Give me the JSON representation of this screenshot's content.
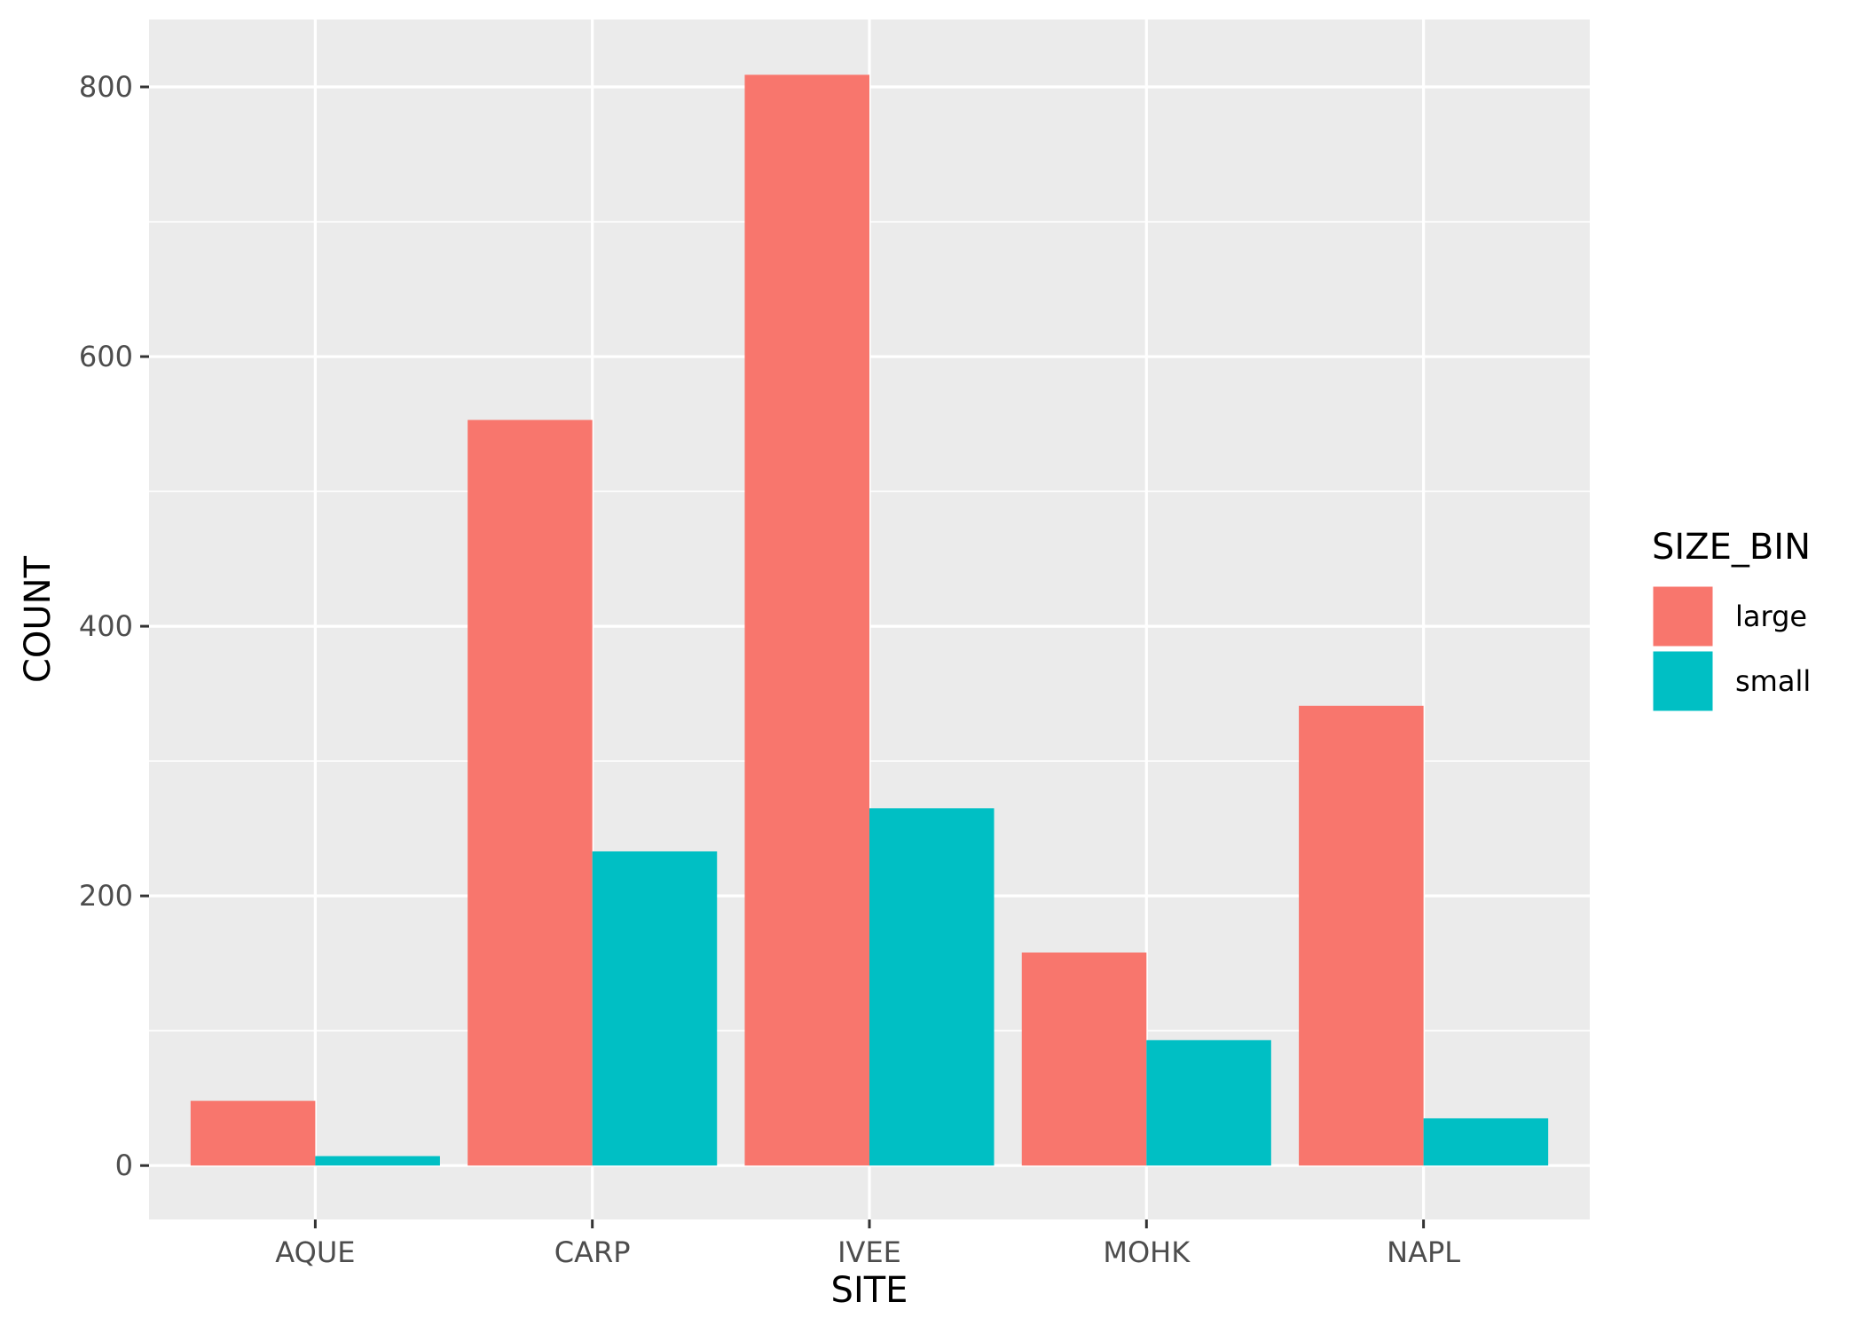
{
  "chart_data": {
    "type": "bar",
    "title": "",
    "xlabel": "SITE",
    "ylabel": "COUNT",
    "categories": [
      "AQUE",
      "CARP",
      "IVEE",
      "MOHK",
      "NAPL"
    ],
    "series": [
      {
        "name": "large",
        "color": "#F8766D",
        "values": [
          48,
          553,
          809,
          158,
          341
        ]
      },
      {
        "name": "small",
        "color": "#00BFC4",
        "values": [
          7,
          233,
          265,
          93,
          35
        ]
      }
    ],
    "ylim": [
      -40,
      850
    ],
    "yticks": [
      0,
      200,
      400,
      600,
      800
    ],
    "grid": true,
    "legend": {
      "title": "SIZE_BIN",
      "position": "right",
      "items": [
        "large",
        "small"
      ]
    },
    "colors": {
      "panel_background": "#EBEBEB",
      "grid": "#FFFFFF",
      "axis_text": "#4D4D4D",
      "axis_title": "#000000"
    }
  }
}
